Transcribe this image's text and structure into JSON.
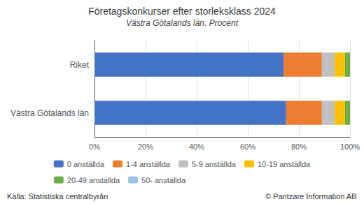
{
  "chart_data": {
    "type": "bar",
    "orientation": "horizontal",
    "stacked": true,
    "title": "Företagskonkurser efter storleksklass 2024",
    "subtitle": "Västra Götalands län. Procent",
    "categories": [
      "Västra Götalands län",
      "Riket"
    ],
    "series": [
      {
        "name": "0 anställda",
        "color": "#4472C4",
        "values": [
          75,
          74
        ]
      },
      {
        "name": "1-4 anställda",
        "color": "#ED7D31",
        "values": [
          14,
          15
        ]
      },
      {
        "name": "5-9 anställda",
        "color": "#C0C0C0",
        "values": [
          5,
          5
        ]
      },
      {
        "name": "10-19 anställda",
        "color": "#FFC000",
        "values": [
          4,
          4
        ]
      },
      {
        "name": "20-49 anställda",
        "color": "#70AD47",
        "values": [
          2,
          2
        ]
      },
      {
        "name": "50- anställda",
        "color": "#9DC3E6",
        "values": [
          0,
          0
        ]
      }
    ],
    "xlim": [
      0,
      100
    ],
    "xticks": [
      {
        "value": 0,
        "label": "0%"
      },
      {
        "value": 20,
        "label": "20%"
      },
      {
        "value": 40,
        "label": "40%"
      },
      {
        "value": 60,
        "label": "60%"
      },
      {
        "value": 80,
        "label": "80%"
      },
      {
        "value": 100,
        "label": "100%"
      }
    ],
    "grid": true,
    "legend": "bottom",
    "annotations": [
      "Källa: Statistiska centralbyrån",
      "© Pantzare Information AB"
    ]
  }
}
